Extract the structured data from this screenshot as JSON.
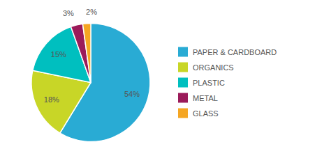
{
  "chart_data": {
    "type": "pie",
    "categories": [
      "PAPER & CARDBOARD",
      "ORGANICS",
      "PLASTIC",
      "METAL",
      "GLASS"
    ],
    "values": [
      54,
      18,
      15,
      3,
      2
    ],
    "value_labels": [
      "54%",
      "18%",
      "15%",
      "3%",
      "2%"
    ],
    "colors": [
      "#29ABD4",
      "#C8D627",
      "#00BFBF",
      "#9B1B5A",
      "#F5A623"
    ],
    "data_labels": true,
    "legend": "right"
  }
}
